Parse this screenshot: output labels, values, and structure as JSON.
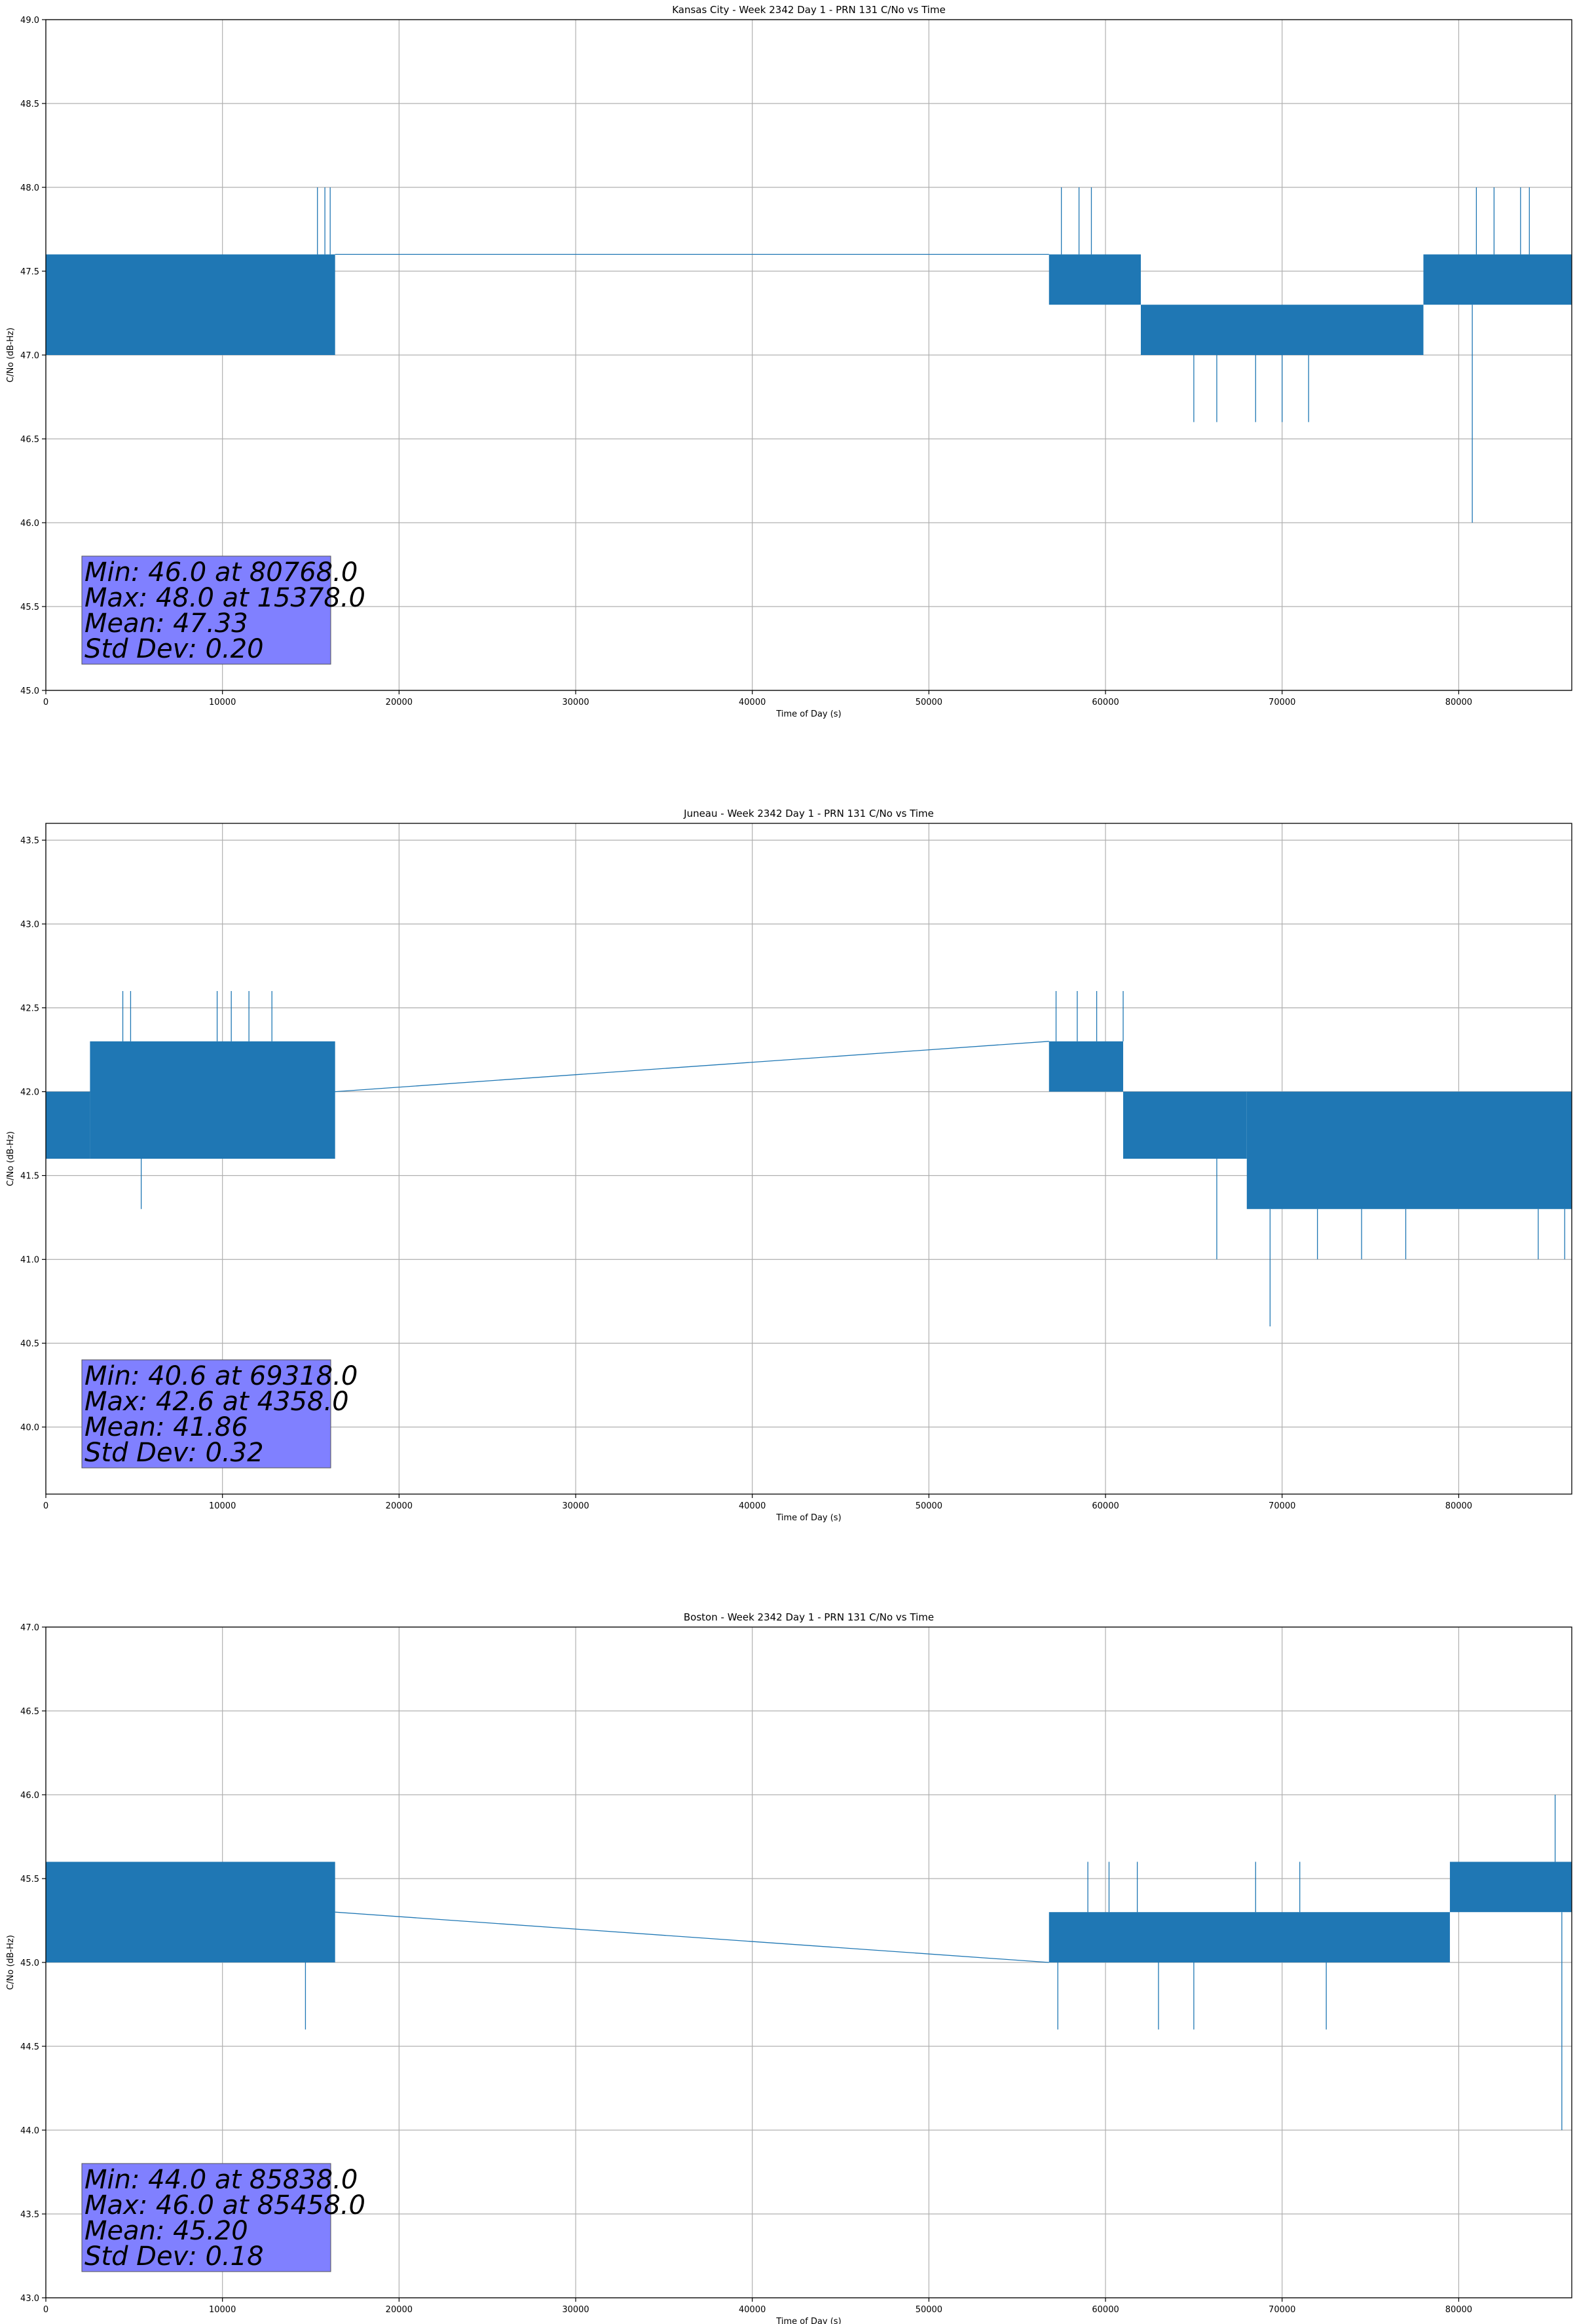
{
  "chart_data": [
    {
      "type": "line",
      "title": "Kansas City - Week 2342 Day 1 - PRN 131 C/No vs Time",
      "xlabel": "Time of Day (s)",
      "ylabel": "C/No (dB-Hz)",
      "xlim": [
        0,
        86400
      ],
      "ylim": [
        45.0,
        49.0
      ],
      "xticks": [
        0,
        10000,
        20000,
        30000,
        40000,
        50000,
        60000,
        70000,
        80000
      ],
      "xtick_labels": [
        "0",
        "10000",
        "20000",
        "30000",
        "40000",
        "50000",
        "60000",
        "70000",
        "80000"
      ],
      "yticks": [
        45.0,
        45.5,
        46.0,
        46.5,
        47.0,
        47.5,
        48.0,
        48.5,
        49.0
      ],
      "ytick_labels": [
        "45.0",
        "45.5",
        "46.0",
        "46.5",
        "47.0",
        "47.5",
        "48.0",
        "48.5",
        "49.0"
      ],
      "grid": true,
      "series": [
        {
          "name": "C/No",
          "segments": [
            {
              "x_start": 0,
              "x_end": 16378,
              "low": 47.0,
              "high": 47.6
            },
            {
              "x_start": 56800,
              "x_end": 62000,
              "low": 47.3,
              "high": 47.6
            },
            {
              "x_start": 62000,
              "x_end": 78000,
              "low": 47.0,
              "high": 47.3
            },
            {
              "x_start": 78000,
              "x_end": 86400,
              "low": 47.3,
              "high": 47.6
            }
          ],
          "gap_connector": [
            [
              16378,
              47.6
            ],
            [
              56800,
              47.6
            ]
          ],
          "spikes": [
            [
              15378,
              48.0
            ],
            [
              15800,
              48.0
            ],
            [
              16100,
              48.0
            ],
            [
              57500,
              48.0
            ],
            [
              58500,
              48.0
            ],
            [
              59200,
              48.0
            ],
            [
              65000,
              46.6
            ],
            [
              66300,
              46.6
            ],
            [
              68500,
              46.6
            ],
            [
              70000,
              46.6
            ],
            [
              71500,
              46.6
            ],
            [
              80768,
              46.0
            ],
            [
              81000,
              48.0
            ],
            [
              82000,
              48.0
            ],
            [
              83500,
              48.0
            ],
            [
              84000,
              48.0
            ]
          ]
        }
      ],
      "stats": [
        "Min: 46.0 at 80768.0",
        "Max: 48.0 at 15378.0",
        "Mean: 47.33",
        "Std Dev: 0.20"
      ]
    },
    {
      "type": "line",
      "title": "Juneau - Week 2342 Day 1 - PRN 131 C/No vs Time",
      "xlabel": "Time of Day (s)",
      "ylabel": "C/No (dB-Hz)",
      "xlim": [
        0,
        86400
      ],
      "ylim": [
        39.6,
        43.6
      ],
      "xticks": [
        0,
        10000,
        20000,
        30000,
        40000,
        50000,
        60000,
        70000,
        80000
      ],
      "xtick_labels": [
        "0",
        "10000",
        "20000",
        "30000",
        "40000",
        "50000",
        "60000",
        "70000",
        "80000"
      ],
      "yticks": [
        40.0,
        40.5,
        41.0,
        41.5,
        42.0,
        42.5,
        43.0,
        43.5
      ],
      "ytick_labels": [
        "40.0",
        "40.5",
        "41.0",
        "41.5",
        "42.0",
        "42.5",
        "43.0",
        "43.5"
      ],
      "grid": true,
      "series": [
        {
          "name": "C/No",
          "segments": [
            {
              "x_start": 0,
              "x_end": 2500,
              "low": 41.6,
              "high": 42.0
            },
            {
              "x_start": 2500,
              "x_end": 16378,
              "low": 41.6,
              "high": 42.3
            },
            {
              "x_start": 56800,
              "x_end": 61000,
              "low": 42.0,
              "high": 42.3
            },
            {
              "x_start": 61000,
              "x_end": 68000,
              "low": 41.6,
              "high": 42.0
            },
            {
              "x_start": 68000,
              "x_end": 86400,
              "low": 41.3,
              "high": 42.0
            }
          ],
          "gap_connector": [
            [
              16378,
              42.0
            ],
            [
              56800,
              42.3
            ]
          ],
          "spikes": [
            [
              4358,
              42.6
            ],
            [
              4800,
              42.6
            ],
            [
              5400,
              41.3
            ],
            [
              9700,
              42.6
            ],
            [
              10500,
              42.6
            ],
            [
              11500,
              42.6
            ],
            [
              12800,
              42.6
            ],
            [
              57200,
              42.6
            ],
            [
              58400,
              42.6
            ],
            [
              59500,
              42.6
            ],
            [
              61000,
              42.6
            ],
            [
              66300,
              41.0
            ],
            [
              69318,
              40.6
            ],
            [
              72000,
              41.0
            ],
            [
              74500,
              41.0
            ],
            [
              77000,
              41.0
            ],
            [
              84500,
              41.0
            ],
            [
              86000,
              41.0
            ]
          ]
        }
      ],
      "stats": [
        "Min: 40.6 at 69318.0",
        "Max: 42.6 at 4358.0",
        "Mean: 41.86",
        "Std Dev: 0.32"
      ]
    },
    {
      "type": "line",
      "title": "Boston - Week 2342 Day 1 - PRN 131 C/No vs Time",
      "xlabel": "Time of Day (s)",
      "ylabel": "C/No (dB-Hz)",
      "xlim": [
        0,
        86400
      ],
      "ylim": [
        43.0,
        47.0
      ],
      "xticks": [
        0,
        10000,
        20000,
        30000,
        40000,
        50000,
        60000,
        70000,
        80000
      ],
      "xtick_labels": [
        "0",
        "10000",
        "20000",
        "30000",
        "40000",
        "50000",
        "60000",
        "70000",
        "80000"
      ],
      "yticks": [
        43.0,
        43.5,
        44.0,
        44.5,
        45.0,
        45.5,
        46.0,
        46.5,
        47.0
      ],
      "ytick_labels": [
        "43.0",
        "43.5",
        "44.0",
        "44.5",
        "45.0",
        "45.5",
        "46.0",
        "46.5",
        "47.0"
      ],
      "grid": true,
      "series": [
        {
          "name": "C/No",
          "segments": [
            {
              "x_start": 0,
              "x_end": 16378,
              "low": 45.0,
              "high": 45.6
            },
            {
              "x_start": 56800,
              "x_end": 79500,
              "low": 45.0,
              "high": 45.3
            },
            {
              "x_start": 79500,
              "x_end": 86400,
              "low": 45.3,
              "high": 45.6
            }
          ],
          "gap_connector": [
            [
              16378,
              45.3
            ],
            [
              56800,
              45.0
            ]
          ],
          "spikes": [
            [
              14700,
              44.6
            ],
            [
              57300,
              44.6
            ],
            [
              59000,
              45.6
            ],
            [
              60200,
              45.6
            ],
            [
              61800,
              45.6
            ],
            [
              63000,
              44.6
            ],
            [
              65000,
              44.6
            ],
            [
              68500,
              45.6
            ],
            [
              71000,
              45.6
            ],
            [
              72500,
              44.6
            ],
            [
              85458,
              46.0
            ],
            [
              85838,
              44.0
            ]
          ]
        }
      ],
      "stats": [
        "Min: 44.0 at 85838.0",
        "Max: 46.0 at 85458.0",
        "Mean: 45.20",
        "Std Dev: 0.18"
      ]
    }
  ]
}
